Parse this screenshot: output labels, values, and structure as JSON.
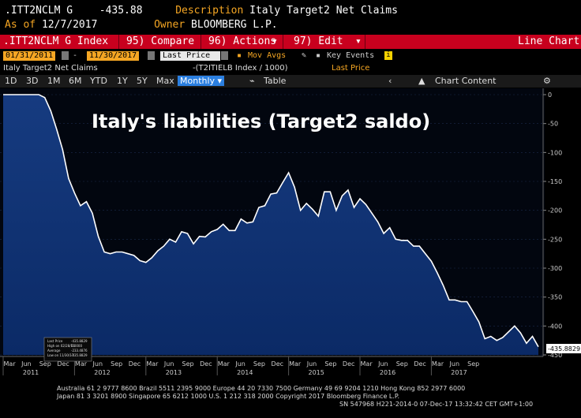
{
  "header": {
    "ticker": ".ITT2NCLM G",
    "last_value": "-435.88",
    "description_label": "Description",
    "description": "Italy Target2 Net Claims",
    "asof_label": "As of",
    "asof_date": "12/7/2017",
    "owner_label": "Owner",
    "owner": "BLOOMBERG L.P."
  },
  "toolbar": {
    "index_label": ".ITT2NCLM G Index",
    "compare": "95) Compare",
    "actions": "96) Actions",
    "edit": "97) Edit",
    "chart_type": "Line Chart"
  },
  "daterow": {
    "start_date": "01/31/2011",
    "end_date": "11/30/2017",
    "field": "Last Price",
    "mov_avgs": "Mov Avgs",
    "key_events": "Key Events"
  },
  "legend_row": {
    "series_name": "Italy Target2 Net Claims",
    "expression": "-(T2ITIELB Index / 1000)",
    "field": "Last Price"
  },
  "range_row": {
    "ranges": [
      "1D",
      "3D",
      "1M",
      "6M",
      "YTD",
      "1Y",
      "5Y",
      "Max"
    ],
    "frequency": "Monthly",
    "table": "Table",
    "chart_content": "Chart Content"
  },
  "chart_data": {
    "type": "area",
    "title": "Italy's liabilities (Target2 saldo)",
    "y_ticks": [
      0,
      -50,
      -100,
      -150,
      -200,
      -250,
      -300,
      -350,
      -400,
      -450
    ],
    "ylim": [
      -450,
      0
    ],
    "x_month_labels": [
      "Mar",
      "Jun",
      "Sep",
      "Dec",
      "Mar",
      "Jun",
      "Sep",
      "Dec",
      "Mar",
      "Jun",
      "Sep",
      "Dec",
      "Mar",
      "Jun",
      "Sep",
      "Dec",
      "Mar",
      "Jun",
      "Sep",
      "Dec",
      "Mar",
      "Jun",
      "Sep",
      "Dec",
      "Mar",
      "Jun",
      "Sep"
    ],
    "x_year_labels": [
      "2011",
      "2012",
      "2013",
      "2014",
      "2015",
      "2016",
      "2017"
    ],
    "x_year_start_months": [
      1,
      13,
      25,
      37,
      49,
      61,
      73
    ],
    "values": [
      0,
      0,
      0,
      0,
      0,
      0,
      0,
      -5,
      -28,
      -60,
      -95,
      -145,
      -170,
      -192,
      -185,
      -205,
      -245,
      -272,
      -275,
      -272,
      -272,
      -275,
      -278,
      -287,
      -290,
      -282,
      -270,
      -262,
      -250,
      -255,
      -237,
      -240,
      -258,
      -245,
      -246,
      -237,
      -233,
      -224,
      -235,
      -235,
      -215,
      -222,
      -220,
      -195,
      -192,
      -172,
      -170,
      -152,
      -135,
      -160,
      -200,
      -188,
      -198,
      -210,
      -168,
      -168,
      -200,
      -175,
      -165,
      -195,
      -180,
      -190,
      -205,
      -220,
      -240,
      -230,
      -250,
      -252,
      -252,
      -262,
      -262,
      -275,
      -288,
      -308,
      -330,
      -355,
      -355,
      -358,
      -358,
      -375,
      -393,
      -422,
      -418,
      -425,
      -420,
      -410,
      -400,
      -412,
      -430,
      -418,
      -436
    ],
    "last_price_label": "-435.8829",
    "legend_box": {
      "last_price": "Last Price",
      "last_price_val": "-435.8829",
      "high_on": "High on 02/28/11",
      "high_val": "0.0000",
      "average": "Average",
      "average_val": "-233.4876",
      "low_on": "Low on 11/30/17",
      "low_val": "-435.8829"
    }
  },
  "footer": {
    "line1": "Australia 61 2 9777 8600 Brazil 5511 2395 9000 Europe 44 20 7330 7500 Germany 49 69 9204 1210 Hong Kong 852 2977 6000",
    "line2": "Japan 81 3 3201 8900       Singapore 65 6212 1000        U.S. 1 212 318 2000           Copyright 2017 Bloomberg Finance L.P.",
    "line3": "SN 547968 H221-2014-0 07-Dec-17 13:32:42 CET  GMT+1:00"
  },
  "colors": {
    "accent_orange": "#f5a623",
    "toolbar_red": "#c8001e",
    "area_blue": "#1f4fa0",
    "line_white": "#ffffff"
  }
}
